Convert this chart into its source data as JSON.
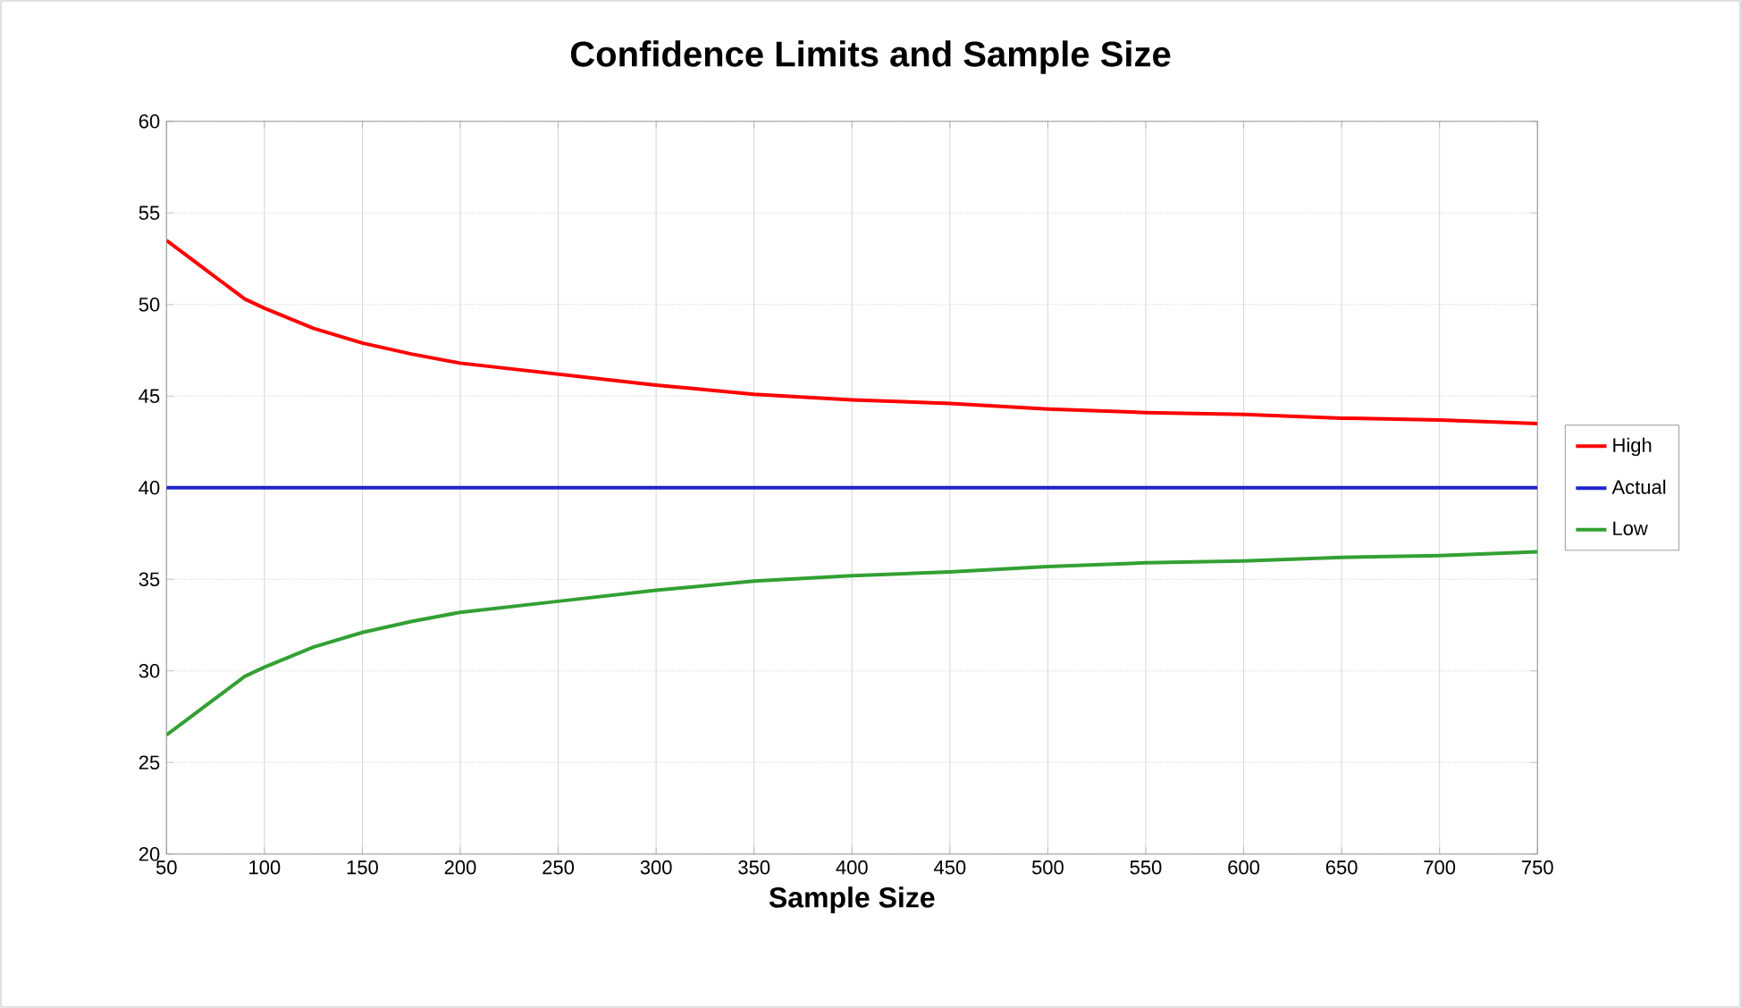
{
  "chart_data": {
    "type": "line",
    "title": "Confidence Limits and Sample Size",
    "xlabel": "Sample Size",
    "x": [
      50,
      60,
      70,
      80,
      90,
      100,
      125,
      150,
      175,
      200,
      250,
      300,
      350,
      400,
      450,
      500,
      550,
      600,
      650,
      700,
      750
    ],
    "series": [
      {
        "name": "High",
        "color": "#ff0000",
        "values": [
          53.5,
          52.7,
          51.9,
          51.1,
          50.3,
          49.8,
          48.7,
          47.9,
          47.3,
          46.8,
          46.2,
          45.6,
          45.1,
          44.8,
          44.6,
          44.3,
          44.1,
          44.0,
          43.8,
          43.7,
          43.5
        ]
      },
      {
        "name": "Actual",
        "color": "#2222cc",
        "values": [
          40,
          40,
          40,
          40,
          40,
          40,
          40,
          40,
          40,
          40,
          40,
          40,
          40,
          40,
          40,
          40,
          40,
          40,
          40,
          40,
          40
        ]
      },
      {
        "name": "Low",
        "color": "#33a033",
        "values": [
          26.5,
          27.3,
          28.1,
          28.9,
          29.7,
          30.2,
          31.3,
          32.1,
          32.7,
          33.2,
          33.8,
          34.4,
          34.9,
          35.2,
          35.4,
          35.7,
          35.9,
          36.0,
          36.2,
          36.3,
          36.5
        ]
      }
    ],
    "xlim": [
      50,
      750
    ],
    "ylim": [
      20,
      60
    ],
    "xticks": [
      50,
      100,
      150,
      200,
      250,
      300,
      350,
      400,
      450,
      500,
      550,
      600,
      650,
      700,
      750
    ],
    "yticks": [
      20,
      25,
      30,
      35,
      40,
      45,
      50,
      55,
      60
    ],
    "grid": true,
    "legend": "right",
    "marker": "none",
    "line_style": "solid"
  }
}
